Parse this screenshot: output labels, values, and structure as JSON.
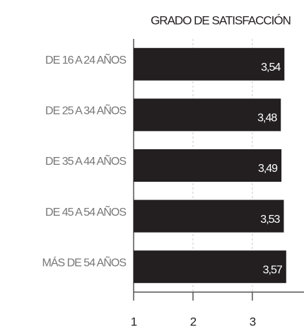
{
  "chart_data": {
    "type": "bar",
    "orientation": "horizontal",
    "title": "GRADO DE SATISFACCIÓN",
    "categories": [
      "DE 16 A 24 AÑOS",
      "DE 25 A 34 AÑOS",
      "DE 35 A 44 AÑOS",
      "DE 45 A 54 AÑOS",
      "MÁS DE 54 AÑOS"
    ],
    "values": [
      3.54,
      3.48,
      3.49,
      3.53,
      3.57
    ],
    "value_labels": [
      "3,54",
      "3,48",
      "3,49",
      "3,53",
      "3,57"
    ],
    "color": "#231f20",
    "xlim": [
      1,
      3.87
    ],
    "xticks": [
      1,
      2,
      3
    ],
    "grid": true
  }
}
